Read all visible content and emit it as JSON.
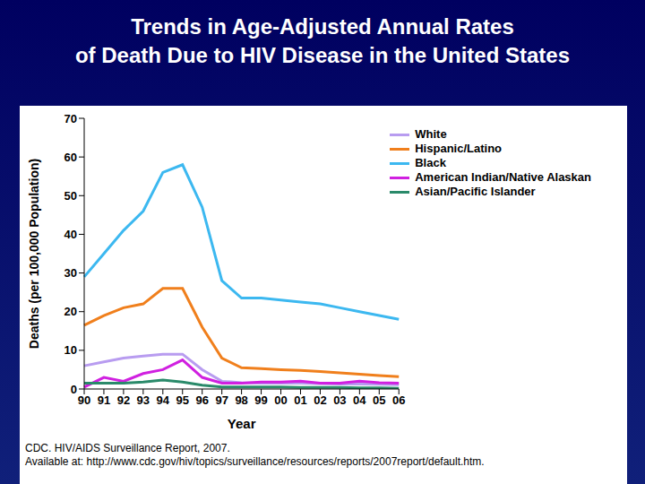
{
  "chart_data": {
    "type": "line",
    "title": [
      "Trends in Age-Adjusted Annual Rates",
      "of Death Due to HIV Disease in the United States"
    ],
    "x_label": "Year",
    "y_label": "Deaths (per 100,000 Population)",
    "categories": [
      "90",
      "91",
      "92",
      "93",
      "94",
      "95",
      "96",
      "97",
      "98",
      "99",
      "00",
      "01",
      "02",
      "03",
      "04",
      "05",
      "06"
    ],
    "series": [
      {
        "name": "White",
        "color": "#b89cf0",
        "values": [
          6,
          7,
          8,
          8.5,
          9,
          9,
          5,
          2,
          1.6,
          1.5,
          1.5,
          1.5,
          1.4,
          1.3,
          1.3,
          1.2,
          1.1
        ]
      },
      {
        "name": "Hispanic/Latino",
        "color": "#f07f1c",
        "values": [
          16.5,
          19,
          21,
          22,
          26,
          26,
          16,
          8,
          5.5,
          5.3,
          5,
          4.8,
          4.5,
          4.2,
          3.8,
          3.5,
          3.2
        ]
      },
      {
        "name": "Black",
        "color": "#3cb8f0",
        "values": [
          29,
          35,
          41,
          46,
          56,
          58,
          47,
          28,
          23.5,
          23.5,
          23,
          22.5,
          22,
          21,
          20,
          19,
          18
        ]
      },
      {
        "name": "American Indian/Native Alaskan",
        "color": "#d020e0",
        "values": [
          0.5,
          3,
          2,
          4,
          5,
          7.5,
          3,
          1.5,
          1.5,
          1.8,
          1.8,
          2,
          1.5,
          1.5,
          2,
          1.6,
          1.5
        ]
      },
      {
        "name": "Asian/Pacific Islander",
        "color": "#2a8a6a",
        "values": [
          1.5,
          1.5,
          1.5,
          1.8,
          2.3,
          1.8,
          1,
          0.5,
          0.5,
          0.5,
          0.5,
          0.4,
          0.4,
          0.4,
          0.3,
          0.3,
          0.2
        ]
      }
    ],
    "ylim": [
      0,
      70
    ],
    "yticks": [
      0,
      10,
      20,
      30,
      40,
      50,
      60,
      70
    ],
    "grid": false,
    "legend": "upper right",
    "notes": [
      "CDC. HIV/AIDS Surveillance Report, 2007.",
      "Available at: http://www.cdc.gov/hiv/topics/surveillance/resources/reports/2007report/default.htm."
    ]
  }
}
